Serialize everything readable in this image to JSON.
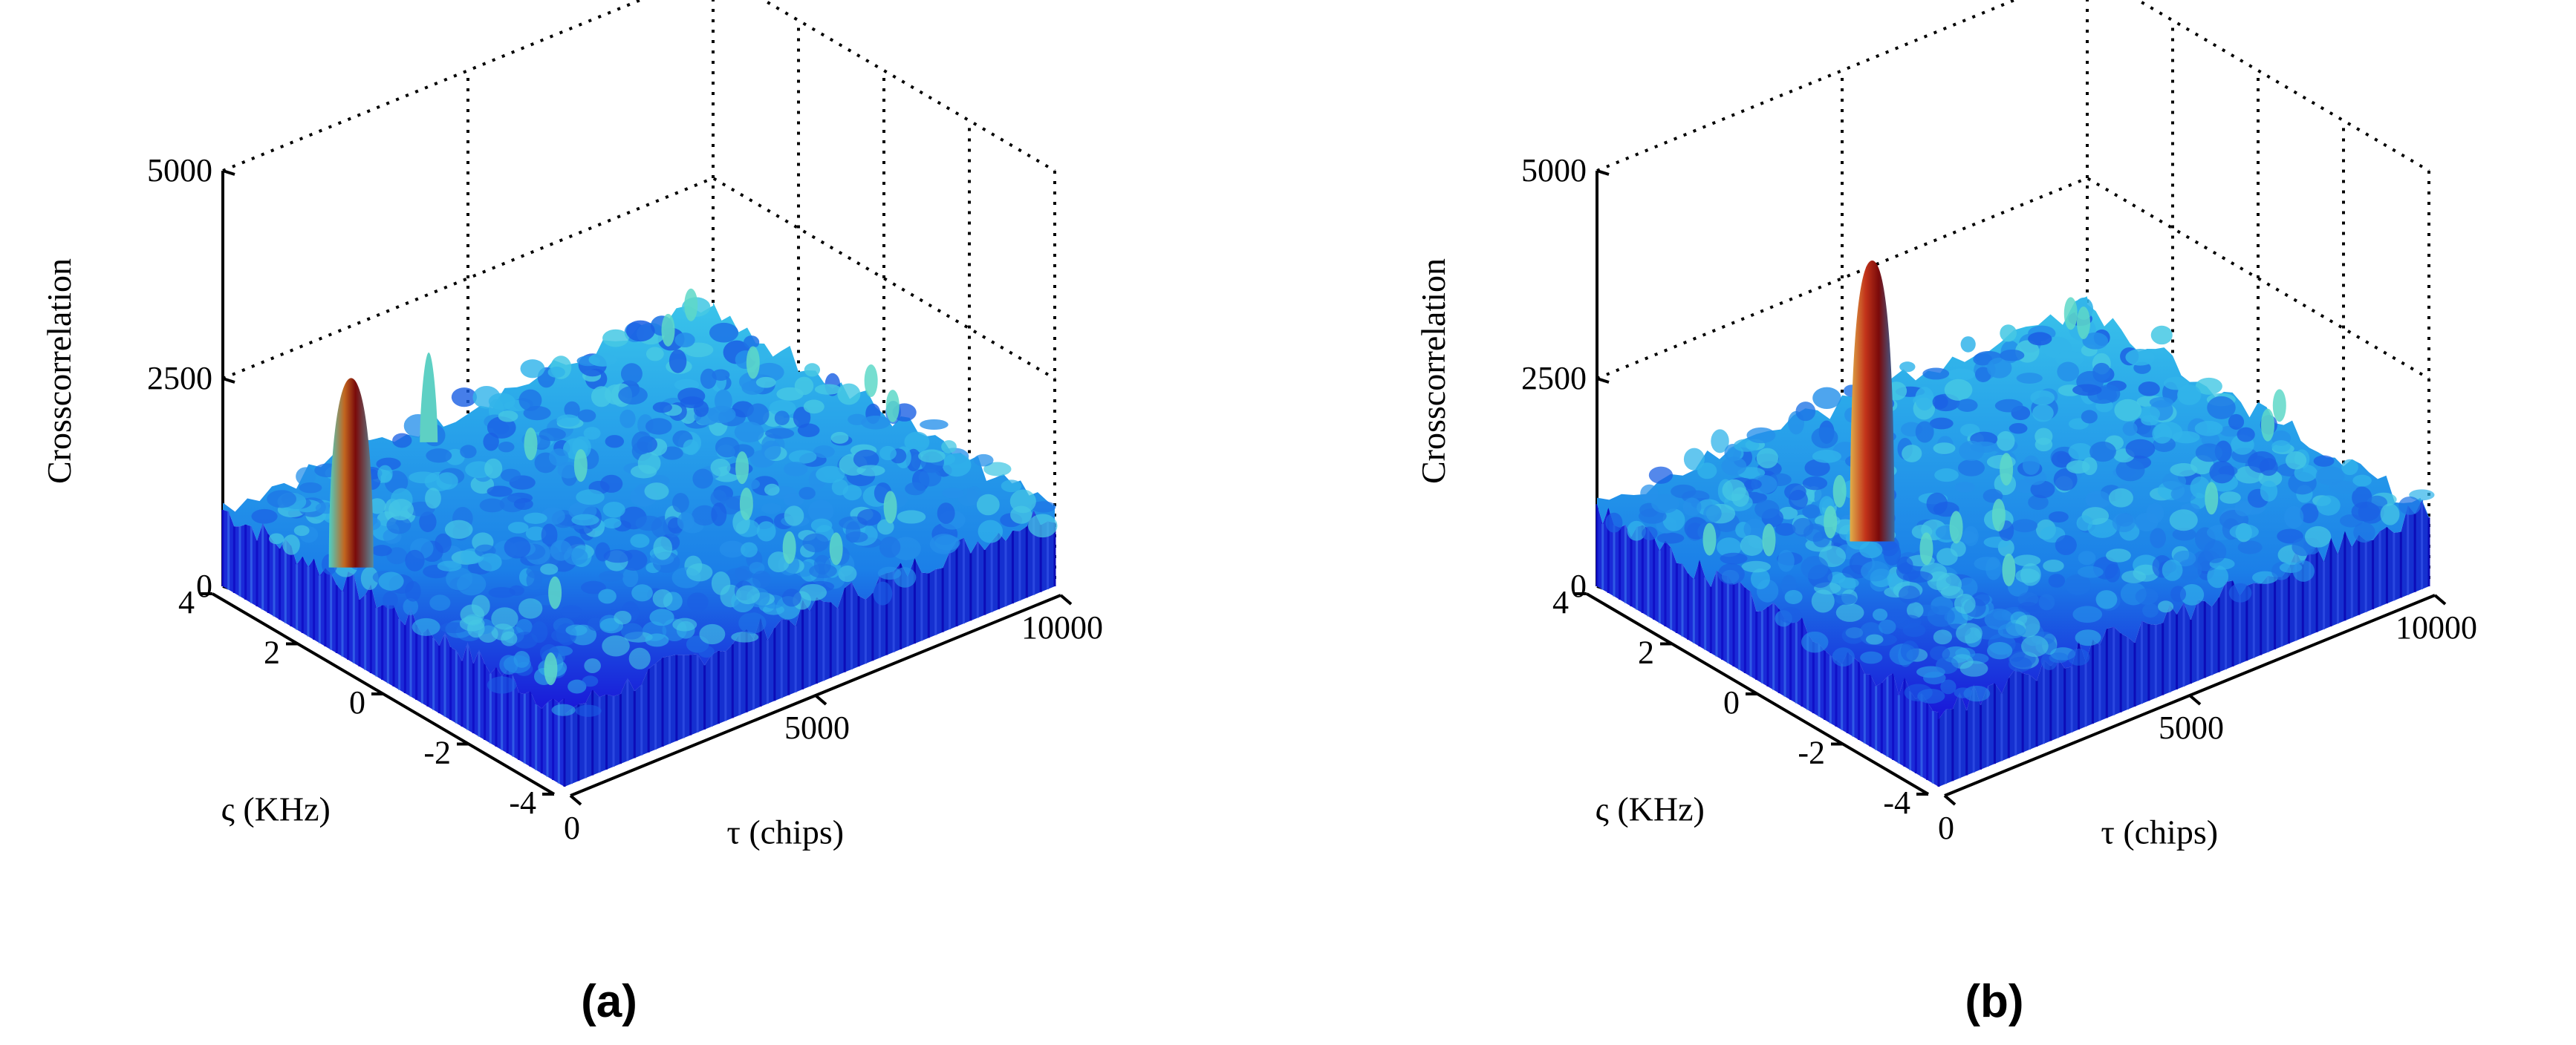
{
  "chart_data": [
    {
      "type": "surface",
      "panel_label": "(a)",
      "zlabel": "Crosscorrelation",
      "xlabel": "τ (chips)",
      "ylabel": "ς (KHz)",
      "z_ticks": [
        "0",
        "2500",
        "5000"
      ],
      "x_ticks": [
        "0",
        "5000",
        "10000"
      ],
      "y_ticks": [
        "4",
        "2",
        "0",
        "-2",
        "-4"
      ],
      "zlim": [
        0,
        5000
      ],
      "xlim": [
        0,
        10000
      ],
      "ylim": [
        -4,
        4
      ],
      "noise_floor": 900,
      "peaks": [
        {
          "tau": 700,
          "freq": 1.8,
          "value": 3000
        },
        {
          "tau": 4200,
          "freq": 4.0,
          "value": 1800
        }
      ],
      "colors": [
        "#1a14d8",
        "#1b7fe8",
        "#2ab8ea",
        "#58d8c4",
        "#b8542a",
        "#7a0a0a"
      ]
    },
    {
      "type": "surface",
      "panel_label": "(b)",
      "zlabel": "Crosscorrelation",
      "xlabel": "τ (chips)",
      "ylabel": "ς (KHz)",
      "z_ticks": [
        "0",
        "2500",
        "5000"
      ],
      "x_ticks": [
        "0",
        "5000",
        "10000"
      ],
      "y_ticks": [
        "4",
        "2",
        "0",
        "-2",
        "-4"
      ],
      "zlim": [
        0,
        5000
      ],
      "xlim": [
        0,
        10000
      ],
      "ylim": [
        -4,
        4
      ],
      "noise_floor": 900,
      "peaks": [
        {
          "tau": 3000,
          "freq": 1.0,
          "value": 4100
        }
      ],
      "colors": [
        "#1a14d8",
        "#1b7fe8",
        "#2ab8ea",
        "#58d8c4",
        "#b8542a",
        "#7a0a0a"
      ]
    }
  ]
}
